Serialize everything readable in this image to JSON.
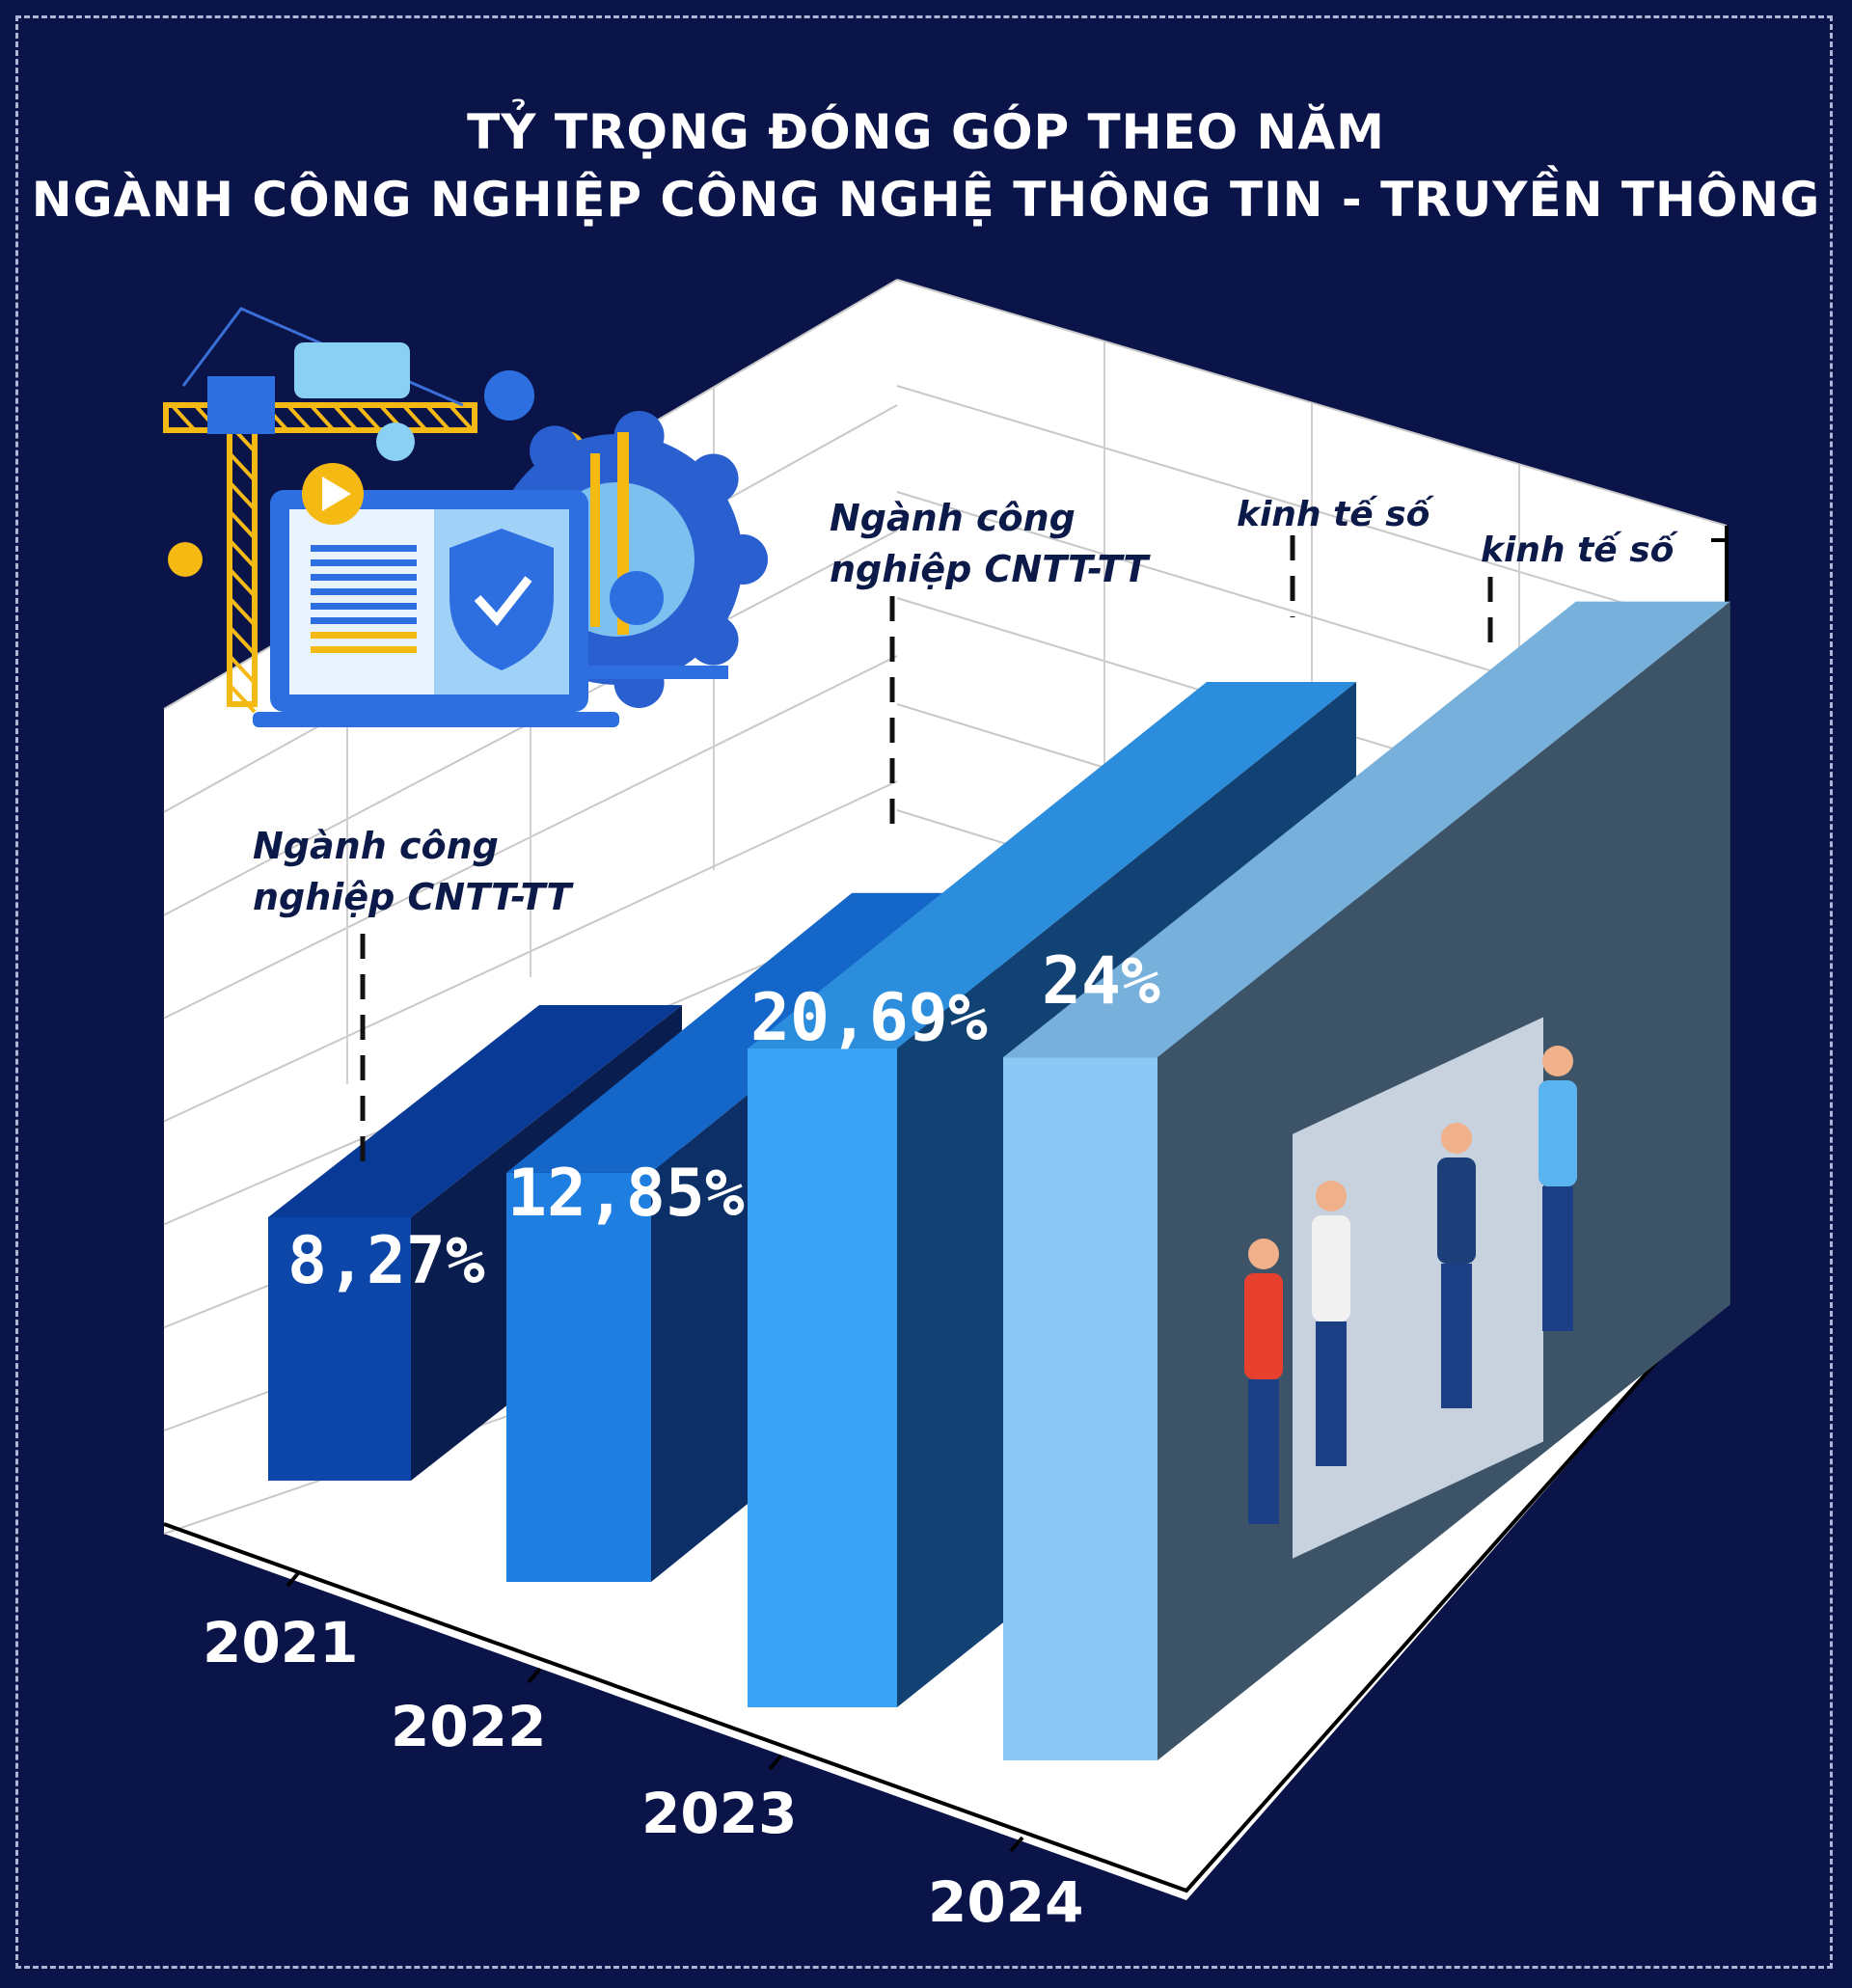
{
  "title_line1": "TỶ TRỌNG ĐÓNG GÓP THEO NĂM",
  "title_line2": "NGÀNH CÔNG NGHIỆP CÔNG NGHỆ THÔNG TIN - TRUYỀN THÔNG",
  "chart_data": {
    "type": "bar",
    "title": "TỶ TRỌNG ĐÓNG GÓP THEO NĂM NGÀNH CÔNG NGHIỆP CÔNG NGHỆ THÔNG TIN - TRUYỀN THÔNG",
    "categories": [
      "2021",
      "2022",
      "2023",
      "2024"
    ],
    "values": [
      8.27,
      12.85,
      20.69,
      24
    ],
    "data_labels": [
      "8,27%",
      "12,85%",
      "20,69%",
      "24%"
    ],
    "annotations": [
      "Ngành công nghiệp CNTT-TT",
      "Ngành công nghiệp CNTT-TT",
      "kinh tế số",
      "kinh tế số"
    ],
    "colors": [
      "#0b46a8",
      "#1f7fe0",
      "#3aa3f5",
      "#8cc8f5"
    ],
    "side_colors": [
      "#0a1d4f",
      "#0b2f66",
      "#124274",
      "#3d5468"
    ],
    "top_colors": [
      "#083a96",
      "#1466c8",
      "#2b8ddc",
      "#77b0da"
    ],
    "grid": true,
    "ylim": [
      0,
      30
    ]
  }
}
